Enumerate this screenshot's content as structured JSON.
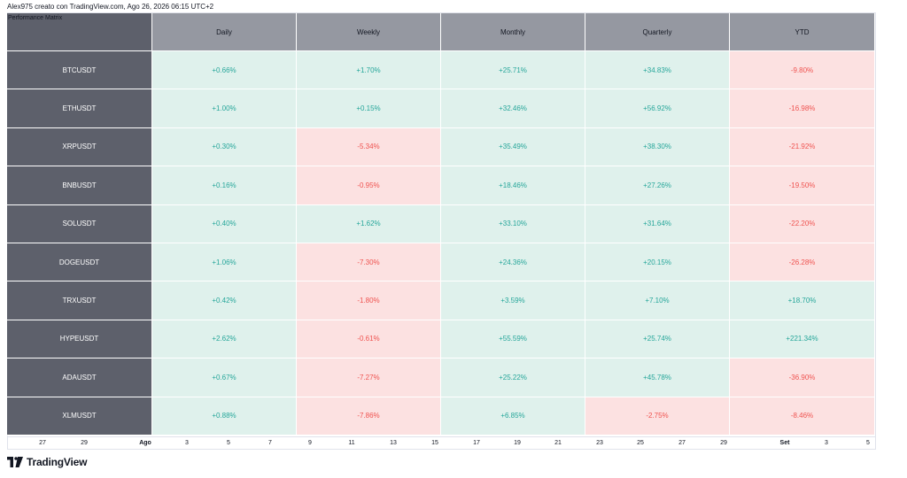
{
  "header": {
    "title_line": "Alex975 creato con TradingView.com, Ago 26, 2026 06:15 UTC+2"
  },
  "matrix": {
    "title": "Performance Matrix",
    "columns": [
      "Daily",
      "Weekly",
      "Monthly",
      "Quarterly",
      "YTD"
    ],
    "rows": [
      {
        "symbol": "BTCUSDT",
        "values": [
          "+0.66%",
          "+1.70%",
          "+25.71%",
          "+34.83%",
          "-9.80%"
        ]
      },
      {
        "symbol": "ETHUSDT",
        "values": [
          "+1.00%",
          "+0.15%",
          "+32.46%",
          "+56.92%",
          "-16.98%"
        ]
      },
      {
        "symbol": "XRPUSDT",
        "values": [
          "+0.30%",
          "-5.34%",
          "+35.49%",
          "+38.30%",
          "-21.92%"
        ]
      },
      {
        "symbol": "BNBUSDT",
        "values": [
          "+0.16%",
          "-0.95%",
          "+18.46%",
          "+27.26%",
          "-19.50%"
        ]
      },
      {
        "symbol": "SOLUSDT",
        "values": [
          "+0.40%",
          "+1.62%",
          "+33.10%",
          "+31.64%",
          "-22.20%"
        ]
      },
      {
        "symbol": "DOGEUSDT",
        "values": [
          "+1.06%",
          "-7.30%",
          "+24.36%",
          "+20.15%",
          "-26.28%"
        ]
      },
      {
        "symbol": "TRXUSDT",
        "values": [
          "+0.42%",
          "-1.80%",
          "+3.59%",
          "+7.10%",
          "+18.70%"
        ]
      },
      {
        "symbol": "HYPEUSDT",
        "values": [
          "+2.62%",
          "-0.61%",
          "+55.59%",
          "+25.74%",
          "+221.34%"
        ]
      },
      {
        "symbol": "ADAUSDT",
        "values": [
          "+0.67%",
          "-7.27%",
          "+25.22%",
          "+45.78%",
          "-36.90%"
        ]
      },
      {
        "symbol": "XLMUSDT",
        "values": [
          "+0.88%",
          "-7.86%",
          "+6.85%",
          "-2.75%",
          "-8.46%"
        ]
      }
    ]
  },
  "time_axis": {
    "ticks": [
      {
        "label": "27",
        "bold": false
      },
      {
        "label": "29",
        "bold": false
      },
      {
        "label": "Ago",
        "bold": true
      },
      {
        "label": "3",
        "bold": false
      },
      {
        "label": "5",
        "bold": false
      },
      {
        "label": "7",
        "bold": false
      },
      {
        "label": "9",
        "bold": false
      },
      {
        "label": "11",
        "bold": false
      },
      {
        "label": "13",
        "bold": false
      },
      {
        "label": "15",
        "bold": false
      },
      {
        "label": "17",
        "bold": false
      },
      {
        "label": "19",
        "bold": false
      },
      {
        "label": "21",
        "bold": false
      },
      {
        "label": "23",
        "bold": false
      },
      {
        "label": "25",
        "bold": false
      },
      {
        "label": "27",
        "bold": false
      },
      {
        "label": "29",
        "bold": false
      },
      {
        "label": "Set",
        "bold": true
      },
      {
        "label": "3",
        "bold": false
      },
      {
        "label": "5",
        "bold": false
      }
    ]
  },
  "branding": {
    "logo_icon": "tradingview-logo-icon",
    "name": "TradingView"
  },
  "colors": {
    "positive_bg": "#dff1ec",
    "positive_text": "#26a69a",
    "negative_bg": "#fce1e1",
    "negative_text": "#ef5350",
    "row_header_bg": "#5d606b",
    "column_header_bg": "#9598a1"
  }
}
